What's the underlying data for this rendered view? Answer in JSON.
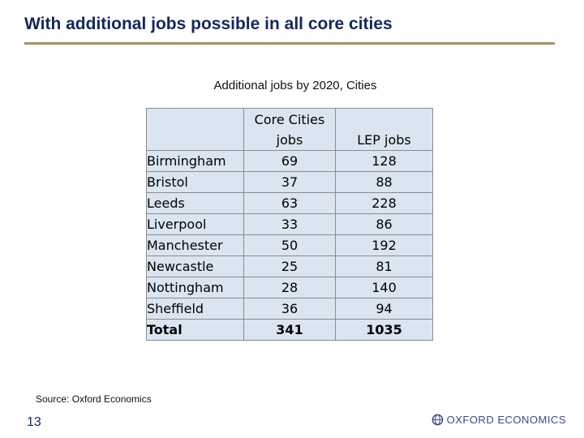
{
  "slide": {
    "title": "With additional jobs possible in all core cities",
    "subtitle": "Additional jobs by 2020, Cities",
    "source": "Source: Oxford Economics",
    "page_number": "13",
    "logo_text": "OXFORD ECONOMICS"
  },
  "table": {
    "headers": [
      "",
      "Core Cities jobs",
      "LEP jobs"
    ],
    "header_lines": {
      "core_line1": "Core Cities",
      "core_line2": "jobs",
      "lep": "LEP jobs"
    },
    "rows": [
      {
        "city": "Birmingham",
        "core": "69",
        "lep": "128"
      },
      {
        "city": "Bristol",
        "core": "37",
        "lep": "88"
      },
      {
        "city": "Leeds",
        "core": "63",
        "lep": "228"
      },
      {
        "city": "Liverpool",
        "core": "33",
        "lep": "86"
      },
      {
        "city": "Manchester",
        "core": "50",
        "lep": "192"
      },
      {
        "city": "Newcastle",
        "core": "25",
        "lep": "81"
      },
      {
        "city": "Nottingham",
        "core": "28",
        "lep": "140"
      },
      {
        "city": "Sheffield",
        "core": "36",
        "lep": "94"
      }
    ],
    "total": {
      "city": "Total",
      "core": "341",
      "lep": "1035"
    }
  },
  "colors": {
    "title": "#14285a",
    "rule": "#a89060",
    "table_fill": "#dbe5f1",
    "logo": "#3d4a80"
  }
}
